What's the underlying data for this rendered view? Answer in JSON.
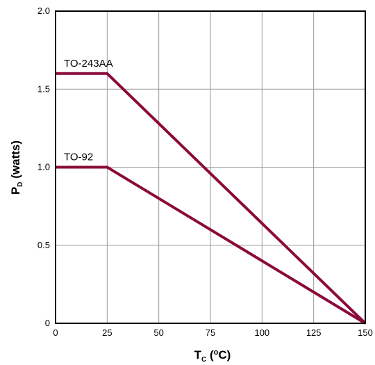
{
  "chart_data": {
    "type": "line",
    "xlabel_main": "T",
    "xlabel_sub": "C",
    "xlabel_open": " (",
    "xlabel_sup": "o",
    "xlabel_unit": "C)",
    "ylabel_main": "P",
    "ylabel_sub": "D",
    "ylabel_unit": " (watts)",
    "xlim": [
      0,
      150
    ],
    "ylim": [
      0,
      2.0
    ],
    "x_ticks": [
      0,
      25,
      50,
      75,
      100,
      125,
      150
    ],
    "x_tick_labels": [
      "0",
      "25",
      "50",
      "75",
      "100",
      "125",
      "150"
    ],
    "y_ticks": [
      0,
      0.5,
      1.0,
      1.5,
      2.0
    ],
    "y_tick_labels": [
      "0",
      "0.5",
      "1.0",
      "1.5",
      "2.0"
    ],
    "grid": true,
    "line_color": "#8b0a3a",
    "series": [
      {
        "name": "TO-243AA",
        "x": [
          0,
          25,
          150
        ],
        "y": [
          1.6,
          1.6,
          0
        ]
      },
      {
        "name": "TO-92",
        "x": [
          0,
          25,
          150
        ],
        "y": [
          1.0,
          1.0,
          0
        ]
      }
    ]
  }
}
